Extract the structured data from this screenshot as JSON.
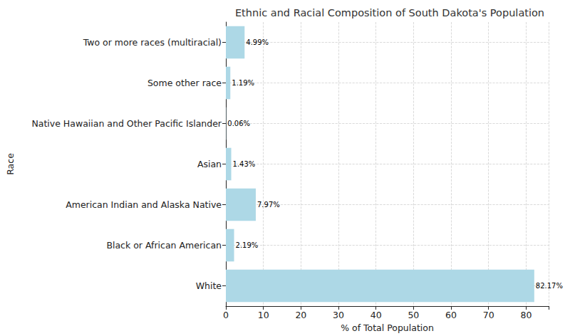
{
  "chart_data": {
    "type": "bar",
    "orientation": "horizontal",
    "title": "Ethnic and Racial Composition of South Dakota's Population",
    "x_label": "% of Total Population",
    "y_label": "Race",
    "categories": [
      "White",
      "Black or African American",
      "American Indian and Alaska Native",
      "Asian",
      "Native Hawaiian and Other Pacific Islander",
      "Some other race",
      "Two or more races (multiracial)"
    ],
    "values": [
      82.17,
      2.19,
      7.97,
      1.43,
      0.06,
      1.19,
      4.99
    ],
    "value_labels": [
      "82.17%",
      "2.19%",
      "7.97%",
      "1.43%",
      "0.06%",
      "1.19%",
      "4.99%"
    ],
    "color": "#add8e6",
    "xlim": [
      0,
      86
    ],
    "xticks": [
      0,
      10,
      20,
      30,
      40,
      50,
      60,
      70,
      80
    ],
    "grid": true,
    "data_labels": true
  }
}
